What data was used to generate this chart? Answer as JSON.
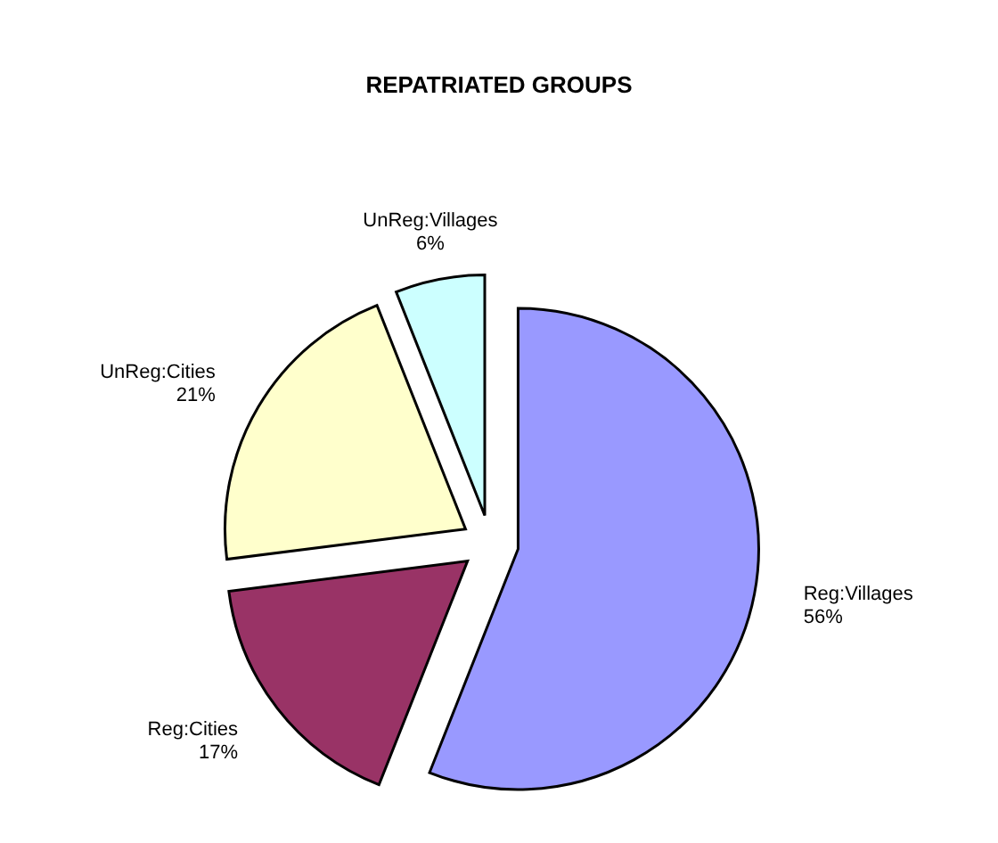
{
  "chart_data": {
    "type": "pie",
    "title": "REPATRIATED GROUPS",
    "categories": [
      "Reg:Villages",
      "Reg:Cities",
      "UnReg:Cities",
      "UnReg:Villages"
    ],
    "values": [
      56,
      17,
      21,
      6
    ],
    "data_labels": true,
    "value_labels": [
      "56%",
      "17%",
      "21%",
      "6%"
    ],
    "colors": [
      "#9999ff",
      "#993366",
      "#ffffcc",
      "#ccffff"
    ]
  }
}
